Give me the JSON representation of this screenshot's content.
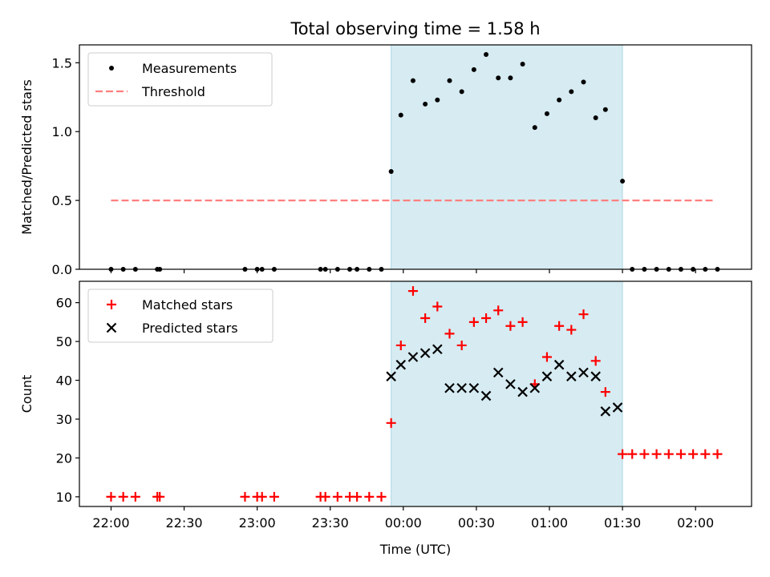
{
  "title": "Total observing time = 1.58 h",
  "chart_data": [
    {
      "type": "scatter",
      "ylabel": "Matched/Predicted stars",
      "ylim": [
        0,
        1.63
      ],
      "yticks": [
        0.0,
        0.5,
        1.0,
        1.5
      ],
      "ytick_labels": [
        "0.0",
        "0.5",
        "1.0",
        "1.5"
      ],
      "legend": {
        "placement": "top-left",
        "entries": [
          "Measurements",
          "Threshold"
        ]
      },
      "series": [
        {
          "name": "Measurements",
          "marker": "dot",
          "color": "#000000",
          "x": [
            "22:00",
            "22:05",
            "22:10",
            "22:19",
            "22:20",
            "22:55",
            "23:00",
            "23:02",
            "23:07",
            "23:26",
            "23:28",
            "23:33",
            "23:38",
            "23:41",
            "23:46",
            "23:51",
            "23:55",
            "23:59",
            "00:04",
            "00:09",
            "00:14",
            "00:19",
            "00:24",
            "00:29",
            "00:34",
            "00:39",
            "00:44",
            "00:49",
            "00:54",
            "00:59",
            "01:04",
            "01:09",
            "01:14",
            "01:19",
            "01:23",
            "01:30",
            "01:34",
            "01:39",
            "01:44",
            "01:49",
            "01:54",
            "01:59",
            "02:04",
            "02:09"
          ],
          "y": [
            0,
            0,
            0,
            0,
            0,
            0,
            0,
            0,
            0,
            0,
            0,
            0,
            0,
            0,
            0,
            0,
            0.71,
            1.12,
            1.37,
            1.2,
            1.23,
            1.37,
            1.29,
            1.45,
            1.56,
            1.39,
            1.39,
            1.49,
            1.03,
            1.13,
            1.23,
            1.29,
            1.36,
            1.1,
            1.16,
            0.64,
            0,
            0,
            0,
            0,
            0,
            0,
            0,
            0
          ]
        },
        {
          "name": "Threshold",
          "style": "dashed",
          "color": "#ff7f7f",
          "x": [
            "22:00",
            "02:08"
          ],
          "y": [
            0.5,
            0.5
          ]
        }
      ],
      "shaded_region": {
        "x": [
          "23:55",
          "01:30"
        ],
        "color": "#add8e6"
      }
    },
    {
      "type": "scatter",
      "ylabel": "Count",
      "xlabel": "Time (UTC)",
      "ylim": [
        7.5,
        65.5
      ],
      "yticks": [
        10,
        20,
        30,
        40,
        50,
        60
      ],
      "ytick_labels": [
        "10",
        "20",
        "30",
        "40",
        "50",
        "60"
      ],
      "xlim": [
        "21:47",
        "02:23"
      ],
      "xticks": [
        "22:00",
        "22:30",
        "23:00",
        "23:30",
        "00:00",
        "00:30",
        "01:00",
        "01:30",
        "02:00"
      ],
      "legend": {
        "placement": "top-left",
        "entries": [
          "Matched stars",
          "Predicted stars"
        ]
      },
      "series": [
        {
          "name": "Matched stars",
          "marker": "plus",
          "color": "#ff0000",
          "x": [
            "22:00",
            "22:05",
            "22:10",
            "22:19",
            "22:20",
            "22:55",
            "23:00",
            "23:02",
            "23:07",
            "23:26",
            "23:28",
            "23:33",
            "23:38",
            "23:41",
            "23:46",
            "23:51",
            "23:55",
            "23:59",
            "00:04",
            "00:09",
            "00:14",
            "00:19",
            "00:24",
            "00:29",
            "00:34",
            "00:39",
            "00:44",
            "00:49",
            "00:54",
            "00:59",
            "01:04",
            "01:09",
            "01:14",
            "01:19",
            "01:23",
            "01:30",
            "01:34",
            "01:39",
            "01:44",
            "01:49",
            "01:54",
            "01:59",
            "02:04",
            "02:09"
          ],
          "y": [
            10,
            10,
            10,
            10,
            10,
            10,
            10,
            10,
            10,
            10,
            10,
            10,
            10,
            10,
            10,
            10,
            29,
            49,
            63,
            56,
            59,
            52,
            49,
            55,
            56,
            58,
            54,
            55,
            39,
            46,
            54,
            53,
            57,
            45,
            37,
            21,
            21,
            21,
            21,
            21,
            21,
            21,
            21,
            21
          ]
        },
        {
          "name": "Predicted stars",
          "marker": "x",
          "color": "#000000",
          "x": [
            "23:55",
            "23:59",
            "00:04",
            "00:09",
            "00:14",
            "00:19",
            "00:24",
            "00:29",
            "00:34",
            "00:39",
            "00:44",
            "00:49",
            "00:54",
            "00:59",
            "01:04",
            "01:09",
            "01:14",
            "01:19",
            "01:23",
            "01:28"
          ],
          "y": [
            41,
            44,
            46,
            47,
            48,
            38,
            38,
            38,
            36,
            42,
            39,
            37,
            38,
            41,
            44,
            41,
            42,
            41,
            32,
            33
          ]
        }
      ],
      "shaded_region": {
        "x": [
          "23:55",
          "01:30"
        ],
        "color": "#add8e6"
      }
    }
  ]
}
